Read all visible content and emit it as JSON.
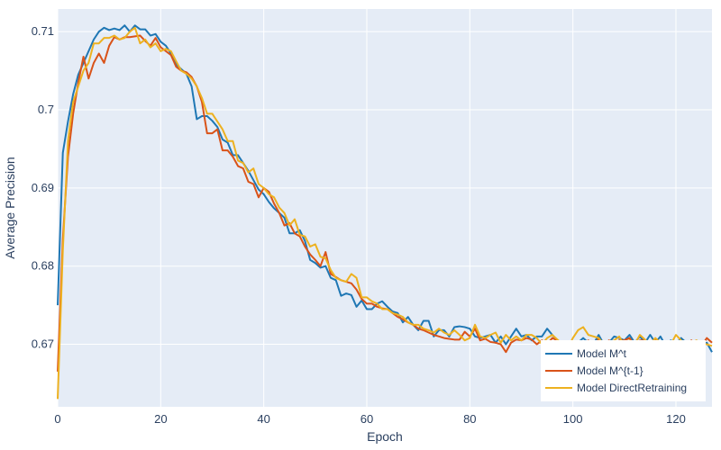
{
  "chart_data": {
    "type": "line",
    "xlabel": "Epoch",
    "ylabel": "Average Precision",
    "xlim": [
      0,
      127
    ],
    "ylim": [
      0.662,
      0.7129
    ],
    "xticks": [
      0,
      20,
      40,
      60,
      80,
      100,
      120
    ],
    "yticks": [
      0.67,
      0.68,
      0.69,
      0.7,
      0.71
    ],
    "ytick_labels": [
      "0.67",
      "0.68",
      "0.69",
      "0.7",
      "0.71"
    ],
    "grid": true,
    "legend_position": "bottom-right",
    "plot_background": "#e5ecf6",
    "series": [
      {
        "name": "Model M^t",
        "color": "#1f77b4",
        "x": [
          0,
          1,
          2,
          3,
          4,
          5,
          6,
          7,
          8,
          9,
          10,
          11,
          12,
          13,
          14,
          15,
          16,
          17,
          18,
          19,
          20,
          21,
          22,
          23,
          24,
          25,
          26,
          27,
          28,
          29,
          30,
          31,
          32,
          33,
          34,
          35,
          36,
          37,
          38,
          39,
          40,
          41,
          42,
          43,
          44,
          45,
          46,
          47,
          48,
          49,
          50,
          51,
          52,
          53,
          54,
          55,
          56,
          57,
          58,
          59,
          60,
          61,
          62,
          63,
          64,
          65,
          66,
          67,
          68,
          69,
          70,
          71,
          72,
          73,
          74,
          75,
          76,
          77,
          78,
          79,
          80,
          81,
          82,
          83,
          84,
          85,
          86,
          87,
          88,
          89,
          90,
          91,
          92,
          93,
          94,
          95,
          96,
          97,
          98,
          99,
          100,
          101,
          102,
          103,
          104,
          105,
          106,
          107,
          108,
          109,
          110,
          111,
          112,
          113,
          114,
          115,
          116,
          117,
          118,
          119,
          120,
          121,
          122,
          123,
          124,
          125,
          126,
          127
        ],
        "y": [
          0.675,
          0.6945,
          0.6985,
          0.702,
          0.7045,
          0.706,
          0.7075,
          0.709,
          0.71,
          0.7105,
          0.7102,
          0.7104,
          0.7102,
          0.7108,
          0.71,
          0.7108,
          0.7103,
          0.7103,
          0.7095,
          0.7097,
          0.7087,
          0.7082,
          0.7072,
          0.7058,
          0.7052,
          0.7046,
          0.703,
          0.6988,
          0.6992,
          0.6992,
          0.6986,
          0.6978,
          0.6962,
          0.6958,
          0.6942,
          0.6942,
          0.6932,
          0.6922,
          0.691,
          0.6898,
          0.6892,
          0.6882,
          0.6874,
          0.6868,
          0.6862,
          0.6842,
          0.6842,
          0.6846,
          0.6832,
          0.6808,
          0.6804,
          0.6798,
          0.68,
          0.6785,
          0.6782,
          0.6762,
          0.6765,
          0.6763,
          0.6748,
          0.6756,
          0.6745,
          0.6745,
          0.6752,
          0.6755,
          0.6748,
          0.6742,
          0.674,
          0.6728,
          0.6735,
          0.6725,
          0.6718,
          0.673,
          0.673,
          0.671,
          0.6718,
          0.6718,
          0.671,
          0.6722,
          0.6723,
          0.6722,
          0.672,
          0.671,
          0.6708,
          0.671,
          0.6712,
          0.6702,
          0.671,
          0.67,
          0.671,
          0.672,
          0.671,
          0.6712,
          0.6705,
          0.671,
          0.671,
          0.672,
          0.6712,
          0.6705,
          0.67,
          0.6688,
          0.67,
          0.6702,
          0.6708,
          0.6702,
          0.67,
          0.6712,
          0.67,
          0.6702,
          0.671,
          0.6708,
          0.6705,
          0.6712,
          0.6702,
          0.671,
          0.6702,
          0.6712,
          0.6702,
          0.671,
          0.6698,
          0.6705,
          0.67,
          0.6708,
          0.6702,
          0.6698,
          0.6702,
          0.67,
          0.6702,
          0.669
        ]
      },
      {
        "name": "Model M^{t-1}",
        "color": "#d95319",
        "x": [
          0,
          1,
          2,
          3,
          4,
          5,
          6,
          7,
          8,
          9,
          10,
          11,
          12,
          13,
          14,
          15,
          16,
          17,
          18,
          19,
          20,
          21,
          22,
          23,
          24,
          25,
          26,
          27,
          28,
          29,
          30,
          31,
          32,
          33,
          34,
          35,
          36,
          37,
          38,
          39,
          40,
          41,
          42,
          43,
          44,
          45,
          46,
          47,
          48,
          49,
          50,
          51,
          52,
          53,
          54,
          55,
          56,
          57,
          58,
          59,
          60,
          61,
          62,
          63,
          64,
          65,
          66,
          67,
          68,
          69,
          70,
          71,
          72,
          73,
          74,
          75,
          76,
          77,
          78,
          79,
          80,
          81,
          82,
          83,
          84,
          85,
          86,
          87,
          88,
          89,
          90,
          91,
          92,
          93,
          94,
          95,
          96,
          97,
          98,
          99,
          100,
          101,
          102,
          103,
          104,
          105,
          106,
          107,
          108,
          109,
          110,
          111,
          112,
          113,
          114,
          115,
          116,
          117,
          118,
          119,
          120,
          121,
          122,
          123,
          124,
          125,
          126,
          127
        ],
        "y": [
          0.6665,
          0.6835,
          0.694,
          0.6995,
          0.7035,
          0.7068,
          0.704,
          0.706,
          0.7072,
          0.706,
          0.7082,
          0.7093,
          0.709,
          0.7093,
          0.7093,
          0.7094,
          0.7095,
          0.7088,
          0.7082,
          0.7092,
          0.708,
          0.7075,
          0.707,
          0.7055,
          0.705,
          0.7048,
          0.7042,
          0.703,
          0.701,
          0.697,
          0.697,
          0.6975,
          0.6948,
          0.6948,
          0.694,
          0.6928,
          0.6925,
          0.6908,
          0.6905,
          0.6888,
          0.69,
          0.6895,
          0.688,
          0.6868,
          0.6852,
          0.6855,
          0.6842,
          0.6838,
          0.6825,
          0.6815,
          0.6808,
          0.68,
          0.6818,
          0.679,
          0.6786,
          0.6782,
          0.678,
          0.6778,
          0.677,
          0.6758,
          0.6752,
          0.6752,
          0.6748,
          0.6746,
          0.6745,
          0.674,
          0.6735,
          0.6732,
          0.6728,
          0.6725,
          0.672,
          0.6718,
          0.6715,
          0.6712,
          0.671,
          0.6708,
          0.6707,
          0.6706,
          0.6706,
          0.6716,
          0.671,
          0.672,
          0.6705,
          0.6707,
          0.6703,
          0.6702,
          0.67,
          0.669,
          0.6702,
          0.6706,
          0.6705,
          0.6708,
          0.6706,
          0.67,
          0.6705,
          0.67,
          0.6708,
          0.6705,
          0.67,
          0.6692,
          0.6698,
          0.6702,
          0.67,
          0.6705,
          0.6692,
          0.6708,
          0.6698,
          0.6705,
          0.67,
          0.6705,
          0.6705,
          0.6708,
          0.6698,
          0.6705,
          0.6705,
          0.6702,
          0.6705,
          0.669,
          0.6702,
          0.6702,
          0.67,
          0.67,
          0.6698,
          0.6705,
          0.6695,
          0.6698,
          0.6708,
          0.6702
        ]
      },
      {
        "name": "Model DirectRetraining",
        "color": "#edb120",
        "x": [
          0,
          1,
          2,
          3,
          4,
          5,
          6,
          7,
          8,
          9,
          10,
          11,
          12,
          13,
          14,
          15,
          16,
          17,
          18,
          19,
          20,
          21,
          22,
          23,
          24,
          25,
          26,
          27,
          28,
          29,
          30,
          31,
          32,
          33,
          34,
          35,
          36,
          37,
          38,
          39,
          40,
          41,
          42,
          43,
          44,
          45,
          46,
          47,
          48,
          49,
          50,
          51,
          52,
          53,
          54,
          55,
          56,
          57,
          58,
          59,
          60,
          61,
          62,
          63,
          64,
          65,
          66,
          67,
          68,
          69,
          70,
          71,
          72,
          73,
          74,
          75,
          76,
          77,
          78,
          79,
          80,
          81,
          82,
          83,
          84,
          85,
          86,
          87,
          88,
          89,
          90,
          91,
          92,
          93,
          94,
          95,
          96,
          97,
          98,
          99,
          100,
          101,
          102,
          103,
          104,
          105,
          106,
          107,
          108,
          109,
          110,
          111,
          112,
          113,
          114,
          115,
          116,
          117,
          118,
          119,
          120,
          121,
          122,
          123,
          124,
          125,
          126,
          127
        ],
        "y": [
          0.663,
          0.682,
          0.696,
          0.701,
          0.703,
          0.705,
          0.706,
          0.7085,
          0.7085,
          0.7092,
          0.7092,
          0.7095,
          0.709,
          0.7092,
          0.71,
          0.7105,
          0.7085,
          0.709,
          0.708,
          0.7085,
          0.7075,
          0.7078,
          0.7075,
          0.7062,
          0.705,
          0.7046,
          0.704,
          0.703,
          0.7015,
          0.6995,
          0.6995,
          0.6985,
          0.6975,
          0.696,
          0.696,
          0.6935,
          0.6932,
          0.692,
          0.6925,
          0.6905,
          0.69,
          0.6892,
          0.6888,
          0.6875,
          0.6868,
          0.6852,
          0.686,
          0.684,
          0.6838,
          0.6825,
          0.6828,
          0.6812,
          0.681,
          0.6795,
          0.6785,
          0.6782,
          0.678,
          0.679,
          0.6785,
          0.676,
          0.676,
          0.6755,
          0.6752,
          0.6745,
          0.6745,
          0.674,
          0.6738,
          0.6735,
          0.6728,
          0.6725,
          0.6725,
          0.672,
          0.6718,
          0.6715,
          0.672,
          0.6715,
          0.6712,
          0.6718,
          0.6712,
          0.6705,
          0.6708,
          0.6725,
          0.671,
          0.6708,
          0.6712,
          0.6715,
          0.6702,
          0.6712,
          0.6705,
          0.671,
          0.6705,
          0.6712,
          0.6712,
          0.6708,
          0.67,
          0.6708,
          0.6712,
          0.6706,
          0.67,
          0.6695,
          0.6708,
          0.6718,
          0.6722,
          0.6712,
          0.671,
          0.6708,
          0.67,
          0.6702,
          0.6705,
          0.671,
          0.6698,
          0.6705,
          0.67,
          0.6712,
          0.6706,
          0.67,
          0.6708,
          0.6702,
          0.6698,
          0.67,
          0.6712,
          0.6705,
          0.6698,
          0.6702,
          0.6705,
          0.67,
          0.67,
          0.6698
        ]
      }
    ]
  }
}
